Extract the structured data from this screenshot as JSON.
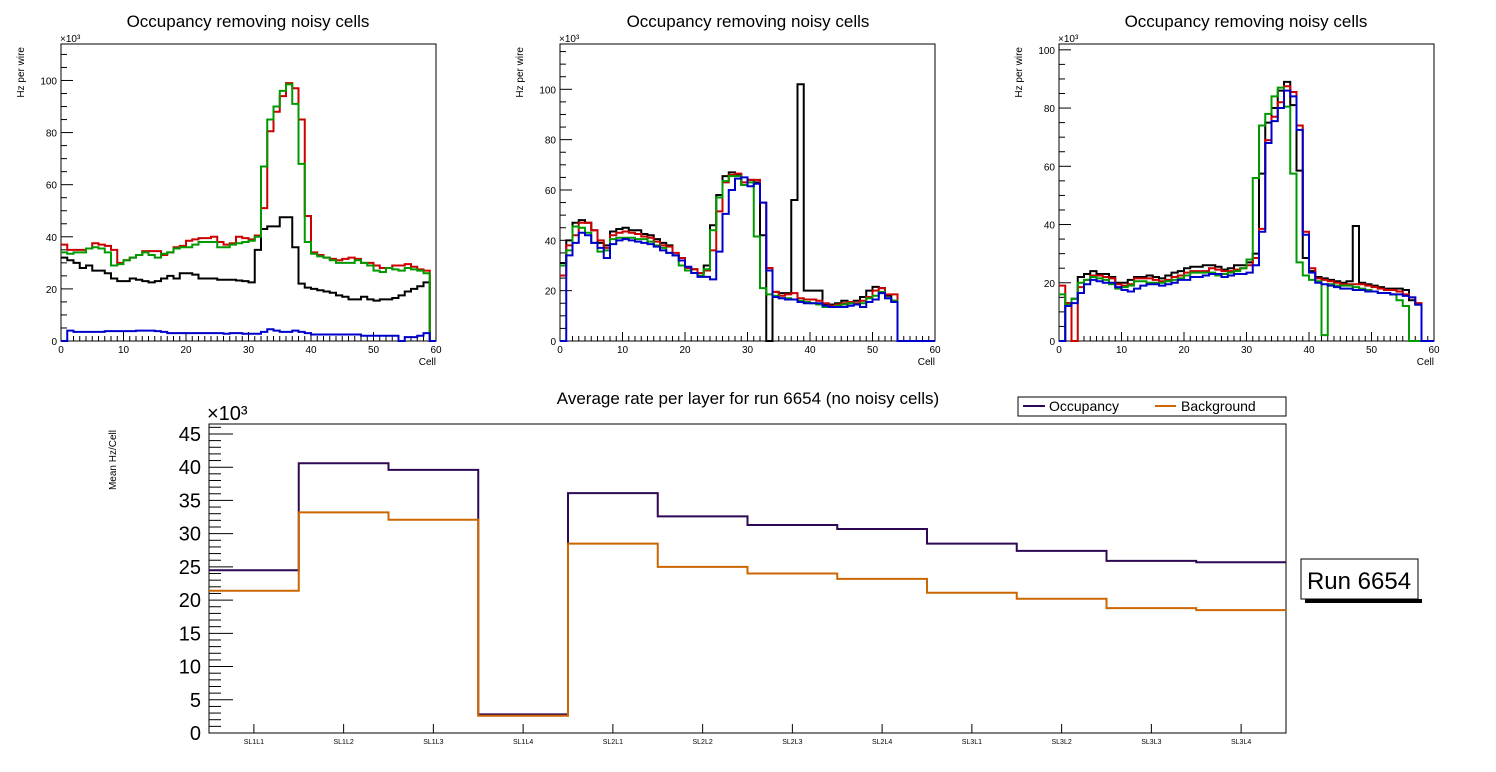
{
  "chart_data": [
    {
      "type": "line",
      "style": "step-histogram",
      "title": "Occupancy removing noisy cells",
      "xlabel": "Cell",
      "ylabel": "Hz per wire",
      "y_multiplier_label": "×10³",
      "xlim": [
        0,
        60
      ],
      "ylim": [
        0,
        114
      ],
      "xticks": [
        "0",
        "10",
        "20",
        "30",
        "40",
        "50",
        "60"
      ],
      "yticks": [
        "0",
        "20",
        "40",
        "60",
        "80",
        "100"
      ],
      "grid": false,
      "series": [
        {
          "name": "black",
          "color": "#000000",
          "values": [
            32,
            31,
            30,
            28,
            29,
            27,
            27,
            26,
            24,
            23,
            23,
            24,
            23.5,
            23,
            22.5,
            23,
            24,
            25,
            24,
            26,
            26,
            25.5,
            24,
            24,
            24,
            23.5,
            23.5,
            23.5,
            23.2,
            23,
            22.5,
            35,
            43,
            44,
            44,
            47.5,
            47.5,
            36,
            22,
            20.5,
            20,
            19.5,
            19,
            18.5,
            17.5,
            17,
            16,
            16,
            17,
            16,
            15.5,
            16,
            16,
            16.5,
            17.5,
            19,
            20,
            21,
            22.5,
            0
          ]
        },
        {
          "name": "red",
          "color": "#cc0000",
          "values": [
            37,
            35,
            35,
            35,
            35.5,
            37.5,
            37,
            36.5,
            35,
            30,
            31,
            32,
            33,
            34.5,
            34.5,
            34.5,
            33,
            34,
            36,
            36.5,
            38.5,
            39,
            39.5,
            39.5,
            40,
            38,
            37,
            37.5,
            40,
            39.5,
            39,
            40.5,
            51,
            80.5,
            88,
            94,
            99,
            97,
            85,
            48,
            34,
            33,
            32,
            31.5,
            31,
            31.5,
            32,
            31.5,
            30,
            30,
            29,
            28,
            28,
            29,
            29,
            29.5,
            28.5,
            27.5,
            27,
            0
          ]
        },
        {
          "name": "green",
          "color": "#009900",
          "values": [
            34,
            33.5,
            34,
            34,
            35.5,
            36,
            35.5,
            34,
            29,
            29.5,
            31,
            32,
            33,
            34,
            33,
            32,
            33.5,
            34,
            35.5,
            36,
            36,
            37,
            38,
            38,
            38,
            36,
            36,
            37,
            37.5,
            38,
            38.5,
            40,
            67,
            85,
            90,
            96,
            98.5,
            91,
            68,
            38,
            33.5,
            32.5,
            32,
            31,
            30,
            30,
            30,
            31,
            30,
            29,
            27,
            26.5,
            28,
            27.5,
            27,
            28,
            27.5,
            27,
            26,
            0
          ]
        },
        {
          "name": "blue",
          "color": "#0000cc",
          "values": [
            0,
            4,
            3.5,
            3.5,
            3.5,
            3.5,
            3.5,
            3.8,
            3.8,
            3.8,
            3.8,
            3.8,
            4,
            4,
            4,
            3.8,
            3.5,
            3,
            3,
            3,
            3,
            3,
            3,
            3,
            3,
            3,
            2.8,
            3,
            3,
            2.8,
            2.8,
            2.8,
            3.5,
            4.5,
            4,
            3.5,
            3.5,
            4,
            3.5,
            3,
            2.5,
            2.5,
            2.5,
            2.5,
            2.5,
            2.5,
            2.5,
            2.5,
            2,
            2,
            2,
            2,
            2,
            2,
            0,
            1.5,
            1.5,
            2,
            3,
            0
          ]
        }
      ]
    },
    {
      "type": "line",
      "style": "step-histogram",
      "title": "Occupancy removing noisy cells",
      "xlabel": "Cell",
      "ylabel": "Hz per wire",
      "y_multiplier_label": "×10³",
      "xlim": [
        0,
        60
      ],
      "ylim": [
        0,
        118
      ],
      "xticks": [
        "0",
        "10",
        "20",
        "30",
        "40",
        "50",
        "60"
      ],
      "yticks": [
        "0",
        "20",
        "40",
        "60",
        "80",
        "100"
      ],
      "grid": false,
      "series": [
        {
          "name": "black",
          "color": "#000000",
          "values": [
            31,
            40,
            47,
            48,
            47,
            44,
            39,
            38,
            43.5,
            44.5,
            45,
            44,
            44,
            42.5,
            42,
            40.5,
            39,
            38,
            34,
            32,
            29,
            28.5,
            27,
            30,
            46,
            58,
            65.5,
            67,
            66,
            62,
            64,
            63,
            42,
            0,
            19.5,
            19,
            19,
            56,
            102,
            20,
            20,
            20,
            14.5,
            14.5,
            15,
            16,
            15,
            16,
            17.5,
            20,
            21.5,
            21,
            18,
            16,
            0,
            0,
            0,
            0,
            0,
            0
          ]
        },
        {
          "name": "red",
          "color": "#cc0000",
          "values": [
            26,
            38,
            42,
            47,
            47,
            44,
            40,
            37,
            42,
            43,
            43.5,
            43,
            42.5,
            41.5,
            41,
            39.5,
            38,
            37.5,
            35,
            33,
            29,
            28.5,
            27,
            28,
            36,
            51.5,
            63,
            66,
            66.5,
            63,
            64,
            64,
            55,
            29,
            19.5,
            18,
            18.5,
            19,
            17,
            16.5,
            16.5,
            16,
            15,
            14,
            14.5,
            15,
            15.5,
            15,
            16,
            17.5,
            20,
            21,
            18.5,
            18.5,
            0,
            0,
            0,
            0,
            0,
            0
          ]
        },
        {
          "name": "green",
          "color": "#009900",
          "values": [
            30,
            36,
            45.5,
            45,
            43,
            39,
            35.5,
            36,
            40.5,
            41,
            41,
            41,
            40.5,
            40.5,
            39.5,
            38,
            37,
            35,
            34,
            30,
            28,
            27,
            26,
            28.5,
            44,
            57,
            63.5,
            65.5,
            65.5,
            62,
            63,
            41.5,
            21,
            18.5,
            18,
            17,
            17,
            16.5,
            16,
            15.5,
            15,
            14.5,
            13.5,
            13.5,
            14,
            14.5,
            15,
            14.5,
            15,
            17,
            18,
            19.5,
            17,
            16,
            0,
            0,
            0,
            0,
            0,
            0
          ]
        },
        {
          "name": "blue",
          "color": "#0000cc",
          "values": [
            0,
            34,
            39,
            43,
            42,
            39,
            37,
            33,
            38.5,
            40,
            40.5,
            40,
            39.5,
            39,
            38.5,
            37.5,
            36,
            35,
            34,
            32,
            29.5,
            27,
            25.5,
            25.5,
            24.5,
            35.5,
            50.5,
            60,
            64.5,
            65,
            61.5,
            62.5,
            55,
            28,
            17.5,
            17,
            16.5,
            16.5,
            15.5,
            15,
            15,
            15,
            14,
            13.5,
            13.5,
            13.5,
            14,
            14.5,
            13.5,
            15.5,
            16.5,
            19,
            17,
            15.5,
            0,
            0,
            0,
            0,
            0,
            0
          ]
        }
      ]
    },
    {
      "type": "line",
      "style": "step-histogram",
      "title": "Occupancy removing noisy cells",
      "xlabel": "Cell",
      "ylabel": "Hz per wire",
      "y_multiplier_label": "×10³",
      "xlim": [
        0,
        60
      ],
      "ylim": [
        0,
        102
      ],
      "xticks": [
        "0",
        "10",
        "20",
        "30",
        "40",
        "50",
        "60"
      ],
      "yticks": [
        "0",
        "20",
        "40",
        "60",
        "80",
        "100"
      ],
      "grid": false,
      "series": [
        {
          "name": "black",
          "color": "#000000",
          "values": [
            0,
            13,
            14.5,
            22,
            23,
            24,
            23,
            23,
            22,
            20,
            20,
            21,
            22,
            22,
            22.5,
            22,
            21.5,
            22.5,
            23.5,
            24,
            25,
            25.5,
            25.5,
            26,
            26,
            25.5,
            24.5,
            25,
            26,
            26,
            27,
            30,
            57.5,
            75,
            80,
            86,
            89,
            81,
            58.5,
            28.5,
            24,
            22,
            21.5,
            21,
            20.5,
            20,
            20.5,
            39.5,
            20,
            19.5,
            19,
            18.5,
            18,
            18,
            18,
            17.5,
            14,
            12.5,
            0,
            0
          ]
        },
        {
          "name": "red",
          "color": "#cc0000",
          "values": [
            19,
            13,
            0,
            18.5,
            21,
            22.5,
            22.5,
            22,
            21.5,
            19.5,
            19,
            19.5,
            21.5,
            21.5,
            21.5,
            21,
            20.5,
            21,
            22,
            22.5,
            23.5,
            24,
            24,
            24,
            25,
            24.5,
            24,
            24,
            24.5,
            25,
            26,
            28.5,
            38.5,
            69,
            77,
            82,
            87.5,
            85.5,
            74,
            37.5,
            25,
            21.5,
            21,
            20.5,
            20,
            19.5,
            19.5,
            19.5,
            19.5,
            19,
            18.5,
            18,
            17.5,
            17.5,
            17,
            16,
            15,
            13,
            0,
            0
          ]
        },
        {
          "name": "green",
          "color": "#009900",
          "values": [
            16,
            12.5,
            14.5,
            20,
            21,
            22,
            21.5,
            21,
            19.5,
            18,
            18.5,
            19,
            20.5,
            20.5,
            20,
            20,
            20,
            20.5,
            21,
            21.5,
            22.5,
            23.5,
            23.5,
            23.5,
            23.5,
            22.5,
            23,
            23.5,
            24,
            25,
            28,
            56,
            74,
            78,
            84,
            87,
            80.5,
            57.5,
            27,
            22.5,
            21,
            20.5,
            2,
            19.5,
            19,
            19,
            19,
            18.5,
            18,
            17.5,
            17,
            16.5,
            16.5,
            16,
            14,
            12,
            0,
            0,
            0,
            0
          ]
        },
        {
          "name": "blue",
          "color": "#0000cc",
          "values": [
            0,
            12,
            13,
            16.5,
            19.5,
            21,
            20.5,
            20,
            20,
            18.5,
            17.5,
            17,
            18,
            19,
            19.5,
            19.5,
            19,
            19.5,
            20,
            21,
            21,
            22,
            22,
            22.5,
            23,
            23,
            22,
            22.5,
            23,
            23,
            23.5,
            26,
            37.5,
            68,
            75.5,
            80,
            86,
            84,
            72.5,
            36.5,
            23.5,
            20,
            19.5,
            19,
            18.5,
            18,
            18,
            17.5,
            17.5,
            17,
            17,
            16.5,
            16.5,
            16,
            16,
            15.5,
            15,
            12.5,
            0,
            0
          ]
        }
      ]
    },
    {
      "type": "line",
      "style": "step-histogram",
      "title": "Average rate per layer for run 6654 (no noisy cells)",
      "xlabel": "",
      "ylabel": "Mean Hz/Cell",
      "y_multiplier_label": "×10³",
      "categories": [
        "SL1L1",
        "SL1L2",
        "SL1L3",
        "SL1L4",
        "SL2L1",
        "SL2L2",
        "SL2L3",
        "SL2L4",
        "SL3L1",
        "SL3L2",
        "SL3L3",
        "SL3L4"
      ],
      "ylim": [
        0,
        46.5
      ],
      "yticks": [
        "0",
        "5",
        "10",
        "15",
        "20",
        "25",
        "30",
        "35",
        "40",
        "45"
      ],
      "grid": false,
      "legend": {
        "placement": "top-right",
        "orientation": "horizontal"
      },
      "series": [
        {
          "name": "Occupancy",
          "color": "#2e0854",
          "values": [
            24.5,
            40.6,
            39.6,
            2.8,
            36.1,
            32.6,
            31.3,
            30.7,
            28.5,
            27.4,
            25.9,
            25.7
          ]
        },
        {
          "name": "Background",
          "color": "#cc6600",
          "values": [
            21.4,
            33.2,
            32.1,
            2.6,
            28.5,
            25.0,
            24.0,
            23.2,
            21.1,
            20.2,
            18.8,
            18.5
          ]
        }
      ],
      "annotation": "Run 6654"
    }
  ]
}
